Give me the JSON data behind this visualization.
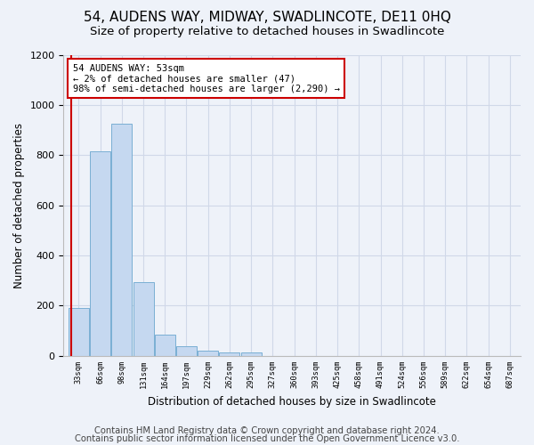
{
  "title1": "54, AUDENS WAY, MIDWAY, SWADLINCOTE, DE11 0HQ",
  "title2": "Size of property relative to detached houses in Swadlincote",
  "xlabel": "Distribution of detached houses by size in Swadlincote",
  "ylabel": "Number of detached properties",
  "footer1": "Contains HM Land Registry data © Crown copyright and database right 2024.",
  "footer2": "Contains public sector information licensed under the Open Government Licence v3.0.",
  "annotation_title": "54 AUDENS WAY: 53sqm",
  "annotation_line2": "← 2% of detached houses are smaller (47)",
  "annotation_line3": "98% of semi-detached houses are larger (2,290) →",
  "bar_labels": [
    "33sqm",
    "66sqm",
    "98sqm",
    "131sqm",
    "164sqm",
    "197sqm",
    "229sqm",
    "262sqm",
    "295sqm",
    "327sqm",
    "360sqm",
    "393sqm",
    "425sqm",
    "458sqm",
    "491sqm",
    "524sqm",
    "556sqm",
    "589sqm",
    "622sqm",
    "654sqm",
    "687sqm"
  ],
  "bar_values": [
    190,
    815,
    925,
    295,
    85,
    38,
    20,
    15,
    12,
    0,
    0,
    0,
    0,
    0,
    0,
    0,
    0,
    0,
    0,
    0,
    0
  ],
  "bar_color": "#c5d8f0",
  "bar_edgecolor": "#7aafd4",
  "vline_color": "#cc0000",
  "vline_bin": 0,
  "annotation_box_edgecolor": "#cc0000",
  "annotation_box_facecolor": "#ffffff",
  "grid_color": "#d0d8e8",
  "ylim": [
    0,
    1200
  ],
  "yticks": [
    0,
    200,
    400,
    600,
    800,
    1000,
    1200
  ],
  "bg_color": "#eef2f9",
  "title1_fontsize": 11,
  "title2_fontsize": 9.5,
  "footer_fontsize": 7.2,
  "xlabel_fontsize": 8.5,
  "ylabel_fontsize": 8.5
}
